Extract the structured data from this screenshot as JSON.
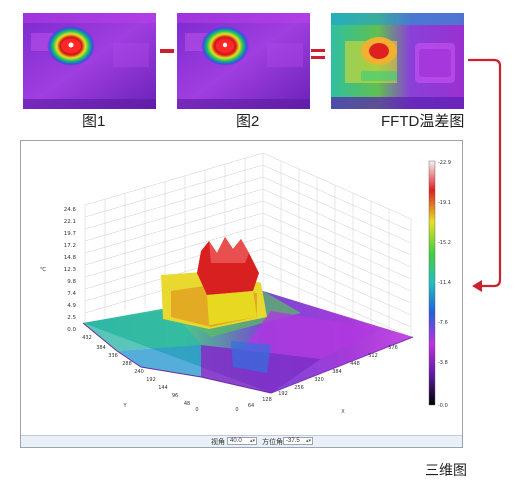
{
  "captions": {
    "image1": "图1",
    "image2": "图2",
    "difference": "FFTD温差图",
    "three_d": "三维图"
  },
  "operators": {
    "minus": "minus",
    "equals": "equals"
  },
  "colors": {
    "accent": "#cc2030"
  },
  "icons": {
    "flow_arrow": "arrow-right-down-left-icon"
  },
  "plot": {
    "z_ticks": [
      "24.6",
      "22.1",
      "19.7",
      "17.2",
      "14.8",
      "12.3",
      "9.8",
      "7.4",
      "4.9",
      "2.5",
      "0.0"
    ],
    "z_label": "℃",
    "y_ticks": [
      "432",
      "384",
      "336",
      "288",
      "240",
      "192",
      "144",
      "96",
      "48",
      "0"
    ],
    "y_label": "Y",
    "x_ticks": [
      "0",
      "64",
      "128",
      "192",
      "256",
      "320",
      "384",
      "448",
      "512",
      "576"
    ],
    "x_label": "X",
    "colorbar_ticks": [
      "-22.9",
      "-19.1",
      "-15.2",
      "-11.4",
      "-7.6",
      "-3.8",
      "-0.0"
    ]
  },
  "statusbar": {
    "elevation_label": "视角",
    "elevation_value": "40.0",
    "azimuth_label": "方位角",
    "azimuth_value": "-37.5"
  }
}
